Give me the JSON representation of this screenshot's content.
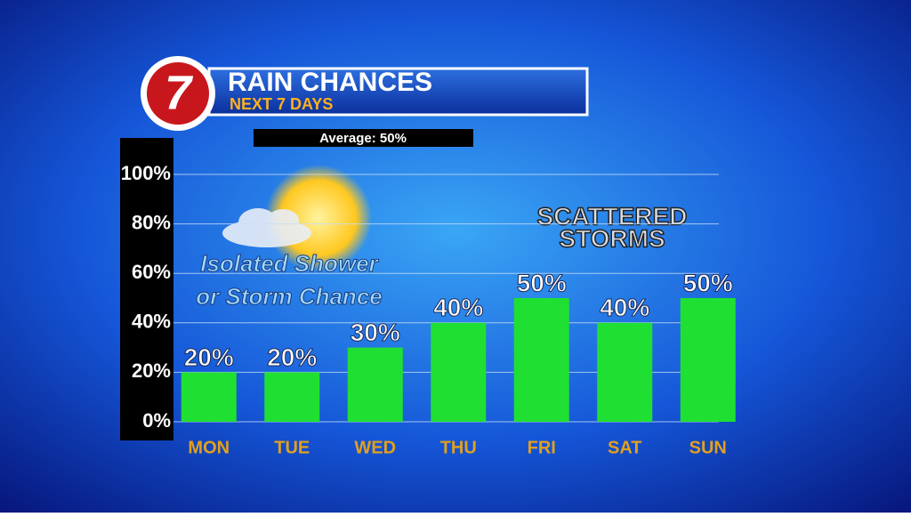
{
  "logo": "7",
  "chart_data": {
    "type": "bar",
    "title": "RAIN CHANCES",
    "subtitle": "NEXT 7 DAYS",
    "average_label": "Average: 50%",
    "annotation_left": [
      "Isolated Shower",
      "or Storm Chance"
    ],
    "annotation_right": [
      "SCATTERED",
      "STORMS"
    ],
    "categories": [
      "MON",
      "TUE",
      "WED",
      "THU",
      "FRI",
      "SAT",
      "SUN"
    ],
    "values": [
      20,
      20,
      30,
      40,
      50,
      40,
      50
    ],
    "value_labels": [
      "20%",
      "20%",
      "30%",
      "40%",
      "50%",
      "40%",
      "50%"
    ],
    "color": "#1fe032",
    "ylim": [
      0,
      100
    ],
    "yticks": [
      {
        "value": 0,
        "label": "0%"
      },
      {
        "value": 20,
        "label": "20%"
      },
      {
        "value": 40,
        "label": "40%"
      },
      {
        "value": 60,
        "label": "60%"
      },
      {
        "value": 80,
        "label": "80%"
      },
      {
        "value": 100,
        "label": "100%"
      }
    ],
    "grid": true
  }
}
